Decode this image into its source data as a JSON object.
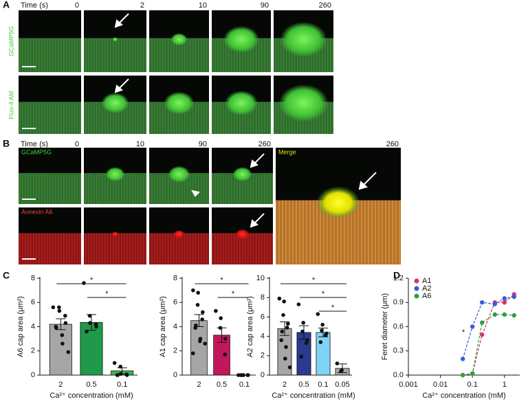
{
  "panel_a": {
    "label": "A",
    "time_label": "Time (s)",
    "times": [
      "0",
      "2",
      "10",
      "90",
      "260"
    ],
    "rows": [
      "GCaMP5G",
      "Fluo-4 AM"
    ]
  },
  "panel_b": {
    "label": "B",
    "time_label": "Time (s)",
    "times": [
      "0",
      "10",
      "90",
      "260",
      "260"
    ],
    "rows": [
      "GCaMP5G",
      "Annexin A6"
    ],
    "merge_label": "Merge"
  },
  "panel_c_label": "C",
  "panel_d_label": "D",
  "chart_data": [
    {
      "type": "bar",
      "ylabel": "A6 cap area (μm²)",
      "xlabel": "Ca²⁺ concentration (mM)",
      "categories": [
        "2",
        "0.5",
        "0.1"
      ],
      "values": [
        4.2,
        4.35,
        0.35
      ],
      "errors": [
        0.45,
        0.65,
        0.25
      ],
      "colors": [
        "#a6a6a6",
        "#1e9a4a",
        "#3cb44b"
      ],
      "points": [
        [
          5.6,
          5.6,
          5.3,
          4.9,
          4.3,
          4.0,
          3.9,
          3.3,
          2.6,
          1.9
        ],
        [
          7.6,
          4.9,
          4.3,
          4.2,
          4.0,
          3.6
        ],
        [
          1.0,
          0.7,
          0.1,
          0.05,
          0,
          0,
          0
        ]
      ],
      "significance": [
        {
          "groups": [
            0,
            2
          ],
          "label": "*"
        },
        {
          "groups": [
            1,
            2
          ],
          "label": "*"
        }
      ],
      "ylim": [
        0,
        8
      ],
      "yticks": [
        0,
        2,
        4,
        6,
        8
      ]
    },
    {
      "type": "bar",
      "ylabel": "A1 cap area (μm²)",
      "categories": [
        "2",
        "0.5",
        "0.1"
      ],
      "values": [
        4.5,
        3.3,
        0
      ],
      "errors": [
        0.5,
        0.6,
        0
      ],
      "colors": [
        "#a6a6a6",
        "#c2185b",
        "#c2185b"
      ],
      "points": [
        [
          7.0,
          6.8,
          5.8,
          5.2,
          4.6,
          4.1,
          3.9,
          3.0,
          2.8,
          2.6,
          1.8
        ],
        [
          5.3,
          4.7,
          3.9,
          3.0,
          1.7
        ],
        [
          0,
          0,
          0,
          0,
          0,
          0,
          0
        ]
      ],
      "significance": [
        {
          "groups": [
            0,
            2
          ],
          "label": "*"
        },
        {
          "groups": [
            1,
            2
          ],
          "label": "*"
        }
      ],
      "ylim": [
        0,
        8
      ],
      "yticks": [
        0,
        2,
        4,
        6,
        8
      ]
    },
    {
      "type": "bar",
      "ylabel": "A2 cap area (μm²)",
      "xlabel": "Ca²⁺ concentration (mM)",
      "categories": [
        "2",
        "0.5",
        "0.1",
        "0.05"
      ],
      "values": [
        4.8,
        4.4,
        4.4,
        0.7
      ],
      "errors": [
        0.7,
        0.7,
        0.45,
        0.45
      ],
      "colors": [
        "#a6a6a6",
        "#2b3a8f",
        "#7fd3f7",
        "#a6a6a6"
      ],
      "points": [
        [
          7.9,
          7.6,
          6.2,
          5.3,
          4.9,
          4.5,
          3.6,
          2.9,
          1.7,
          0.8
        ],
        [
          7.3,
          5.4,
          4.5,
          3.6,
          3.3,
          1.9
        ],
        [
          6.3,
          5.2,
          4.6,
          4.3,
          4.1,
          3.4
        ],
        [
          1.2,
          0.5,
          0.4
        ]
      ],
      "significance": [
        {
          "groups": [
            0,
            3
          ],
          "label": "*"
        },
        {
          "groups": [
            1,
            3
          ],
          "label": "*"
        },
        {
          "groups": [
            2,
            3
          ],
          "label": "*"
        }
      ],
      "ylim": [
        0,
        10
      ],
      "yticks": [
        0,
        2,
        4,
        6,
        8,
        10
      ]
    },
    {
      "type": "scatter",
      "ylabel": "Feret diameter (μm)",
      "xlabel": "Ca²⁺ concentration (mM)",
      "log_x": true,
      "series": [
        {
          "name": "A1",
          "color": "#d6336c",
          "x": [
            0.05,
            0.1,
            0.2,
            0.5,
            1,
            2
          ],
          "values": [
            0,
            0.02,
            0.5,
            0.9,
            0.9,
            1.0
          ]
        },
        {
          "name": "A2",
          "color": "#3b5bdb",
          "x": [
            0.05,
            0.1,
            0.2,
            0.5,
            1,
            2
          ],
          "values": [
            0.2,
            0.6,
            0.9,
            0.88,
            0.95,
            0.97
          ]
        },
        {
          "name": "A6",
          "color": "#2f9e44",
          "x": [
            0.05,
            0.1,
            0.2,
            0.5,
            1,
            2
          ],
          "values": [
            0,
            0.02,
            0.65,
            0.75,
            0.75,
            0.74
          ]
        }
      ],
      "annotation": "*",
      "legend": "upper left",
      "xlim": [
        0.001,
        3
      ],
      "xticks": [
        0.001,
        0.01,
        0.1,
        1
      ],
      "ylim": [
        0,
        1.2
      ],
      "yticks": [
        {
          "value": 0,
          "label": "0.0"
        },
        0.3,
        0.6,
        0.9,
        1.2
      ]
    }
  ]
}
